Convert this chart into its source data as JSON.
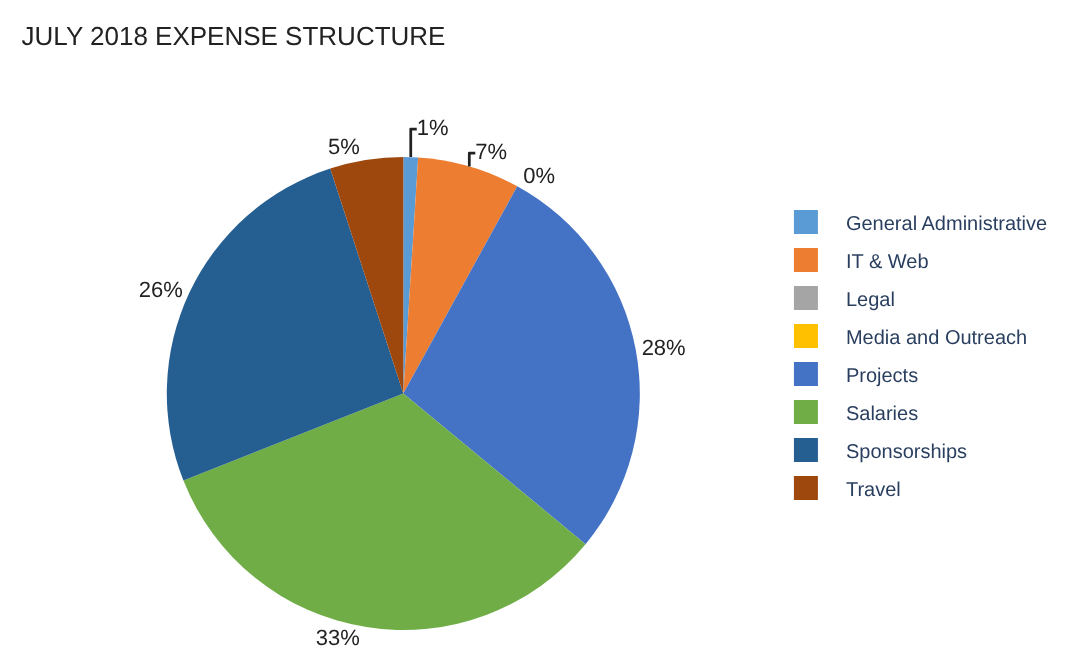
{
  "chart_data": {
    "type": "pie",
    "title": "JULY 2018 EXPENSE STRUCTURE",
    "categories": [
      "General Administrative",
      "IT & Web",
      "Legal",
      "Media and Outreach",
      "Projects",
      "Salaries",
      "Sponsorships",
      "Travel"
    ],
    "values": [
      1,
      7,
      0,
      0,
      28,
      33,
      26,
      5
    ],
    "value_labels": [
      "1%",
      "7%",
      null,
      "0%",
      "28%",
      "33%",
      "26%",
      "5%"
    ],
    "colors": [
      "#5b9bd5",
      "#ed7d31",
      "#a5a5a5",
      "#ffc000",
      "#4472c4",
      "#70ad47",
      "#255e91",
      "#9e480e"
    ],
    "legend": "right"
  }
}
